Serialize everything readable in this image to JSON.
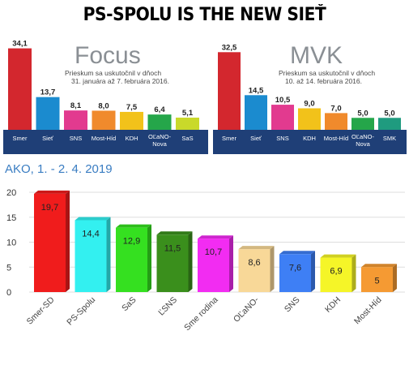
{
  "headline": "PS-SPOLU IS THE NEW SIEŤ",
  "chart_data": [
    {
      "type": "bar",
      "title": "Focus",
      "subtitle": [
        "Prieskum sa uskutočnil v dňoch",
        "31. januára až 7. februára 2016."
      ],
      "categories": [
        "Smer",
        "Sieť",
        "SNS",
        "Most-Híd",
        "KDH",
        "OĽaNO-Nova",
        "SaS"
      ],
      "category_lines": [
        [
          "Smer"
        ],
        [
          "Sieť"
        ],
        [
          "SNS"
        ],
        [
          "Most-Híd"
        ],
        [
          "KDH"
        ],
        [
          "OĽaNO-",
          "Nova"
        ],
        [
          "SaS"
        ]
      ],
      "values": [
        34.1,
        13.7,
        8.1,
        8.0,
        7.5,
        6.4,
        5.1
      ],
      "labels": [
        "34,1",
        "13,7",
        "8,1",
        "8,0",
        "7,5",
        "6,4",
        "5,1"
      ],
      "colors": [
        "#d3272e",
        "#1b8bcf",
        "#e23a8f",
        "#f08a2c",
        "#f2c21a",
        "#25a64a",
        "#c9d92a"
      ],
      "ylim": [
        0,
        36
      ]
    },
    {
      "type": "bar",
      "title": "MVK",
      "subtitle": [
        "Prieskum sa uskutočnil v dňoch",
        "10. až 14. februára 2016."
      ],
      "categories": [
        "Smer",
        "Sieť",
        "SNS",
        "KDH",
        "Most-Híd",
        "OĽaNO-Nova",
        "SMK"
      ],
      "category_lines": [
        [
          "Smer"
        ],
        [
          "Sieť"
        ],
        [
          "SNS"
        ],
        [
          "KDH"
        ],
        [
          "Most-Híd"
        ],
        [
          "OĽaNO-",
          "Nova"
        ],
        [
          "SMK"
        ]
      ],
      "values": [
        32.5,
        14.5,
        10.5,
        9.0,
        7.0,
        5.0,
        5.0
      ],
      "labels": [
        "32,5",
        "14,5",
        "10,5",
        "9,0",
        "7,0",
        "5,0",
        "5,0"
      ],
      "colors": [
        "#d3272e",
        "#1b8bcf",
        "#e23a8f",
        "#f2c21a",
        "#f08a2c",
        "#25a64a",
        "#1f9b7f"
      ],
      "ylim": [
        0,
        36
      ]
    },
    {
      "type": "bar",
      "title": "AKO, 1. - 2. 4. 2019",
      "categories": [
        "Smer-SD",
        "PS-Spolu",
        "SaS",
        "ĽSNS",
        "Sme rodina",
        "OĽaNO-",
        "SNS",
        "KDH",
        "Most-Híd"
      ],
      "values": [
        19.7,
        14.4,
        12.9,
        11.5,
        10.7,
        8.6,
        7.6,
        6.9,
        5
      ],
      "labels": [
        "19,7",
        "14,4",
        "12,9",
        "11,5",
        "10,7",
        "8,6",
        "7,6",
        "6,9",
        "5"
      ],
      "colors": [
        "#f01c1c",
        "#33f0f0",
        "#35e020",
        "#3a8f1c",
        "#f22cf2",
        "#f8d898",
        "#3e7ff5",
        "#f5f528",
        "#f59a33"
      ],
      "yticks": [
        0,
        5,
        10,
        15,
        20
      ],
      "ylim": [
        0,
        20
      ],
      "grid": true
    }
  ]
}
